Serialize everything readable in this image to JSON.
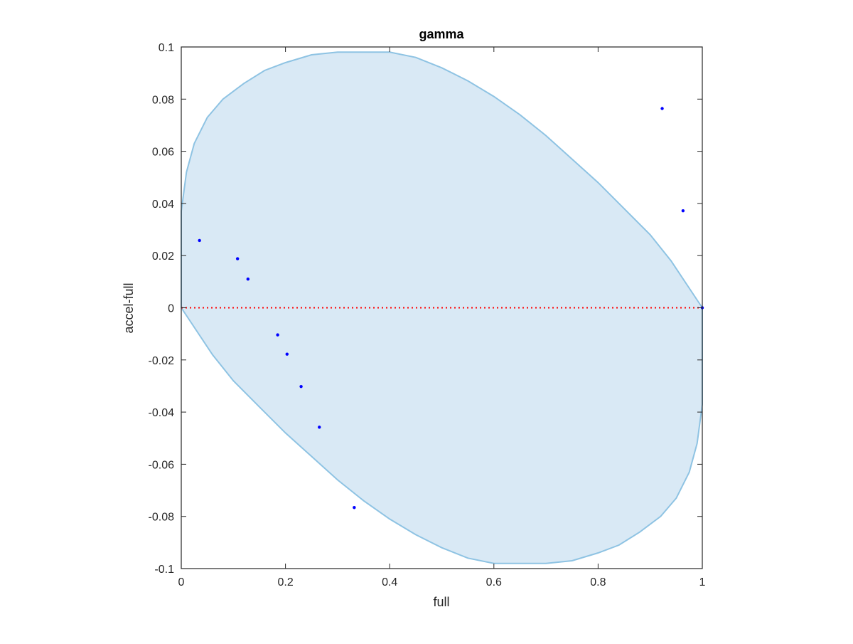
{
  "chart_data": {
    "type": "scatter",
    "title": "gamma",
    "xlabel": "full",
    "ylabel": "accel-full",
    "xlim": [
      0,
      1
    ],
    "ylim": [
      -0.1,
      0.1
    ],
    "xticks": [
      0,
      0.2,
      0.4,
      0.6,
      0.8,
      1
    ],
    "xtick_labels": [
      "0",
      "0.2",
      "0.4",
      "0.6",
      "0.8",
      "1"
    ],
    "yticks": [
      -0.1,
      -0.08,
      -0.06,
      -0.04,
      -0.02,
      0,
      0.02,
      0.04,
      0.06,
      0.08,
      0.1
    ],
    "ytick_labels": [
      "-0.1",
      "-0.08",
      "-0.06",
      "-0.04",
      "-0.02",
      "0",
      "0.02",
      "0.04",
      "0.06",
      "0.08",
      "0.1"
    ],
    "grid": false,
    "reference_line": {
      "y": 0,
      "color": "#ff0000",
      "style": "dotted"
    },
    "region": {
      "shape": "ellipse",
      "fill": "#d9e9f5",
      "stroke": "#8ec3e3",
      "boundary": [
        [
          0,
          0.037
        ],
        [
          0.01,
          0.052
        ],
        [
          0.025,
          0.063
        ],
        [
          0.05,
          0.073
        ],
        [
          0.08,
          0.08
        ],
        [
          0.12,
          0.086
        ],
        [
          0.16,
          0.091
        ],
        [
          0.2,
          0.094
        ],
        [
          0.25,
          0.097
        ],
        [
          0.3,
          0.098
        ],
        [
          0.35,
          0.098
        ],
        [
          0.4,
          0.098
        ],
        [
          0.45,
          0.096
        ],
        [
          0.5,
          0.092
        ],
        [
          0.55,
          0.087
        ],
        [
          0.6,
          0.081
        ],
        [
          0.65,
          0.074
        ],
        [
          0.7,
          0.066
        ],
        [
          0.75,
          0.057
        ],
        [
          0.8,
          0.048
        ],
        [
          0.85,
          0.038
        ],
        [
          0.9,
          0.028
        ],
        [
          0.94,
          0.018
        ],
        [
          0.97,
          0.009
        ],
        [
          1.0,
          0.0
        ],
        [
          1.0,
          -0.037
        ],
        [
          0.99,
          -0.052
        ],
        [
          0.975,
          -0.063
        ],
        [
          0.95,
          -0.073
        ],
        [
          0.92,
          -0.08
        ],
        [
          0.88,
          -0.086
        ],
        [
          0.84,
          -0.091
        ],
        [
          0.8,
          -0.094
        ],
        [
          0.75,
          -0.097
        ],
        [
          0.7,
          -0.098
        ],
        [
          0.65,
          -0.098
        ],
        [
          0.6,
          -0.098
        ],
        [
          0.55,
          -0.096
        ],
        [
          0.5,
          -0.092
        ],
        [
          0.45,
          -0.087
        ],
        [
          0.4,
          -0.081
        ],
        [
          0.35,
          -0.074
        ],
        [
          0.3,
          -0.066
        ],
        [
          0.25,
          -0.057
        ],
        [
          0.2,
          -0.048
        ],
        [
          0.15,
          -0.038
        ],
        [
          0.1,
          -0.028
        ],
        [
          0.06,
          -0.018
        ],
        [
          0.03,
          -0.009
        ],
        [
          0,
          0.0
        ]
      ]
    },
    "series": [
      {
        "color": "#0000ff",
        "points": [
          [
            0.035,
            0.0258
          ],
          [
            0.108,
            0.0188
          ],
          [
            0.128,
            0.011
          ],
          [
            0.185,
            -0.0104
          ],
          [
            0.203,
            -0.0178
          ],
          [
            0.23,
            -0.0302
          ],
          [
            0.265,
            -0.0458
          ],
          [
            0.332,
            -0.0766
          ],
          [
            0.923,
            0.0764
          ],
          [
            0.963,
            0.0372
          ],
          [
            1.0,
            0.0
          ]
        ]
      }
    ]
  }
}
